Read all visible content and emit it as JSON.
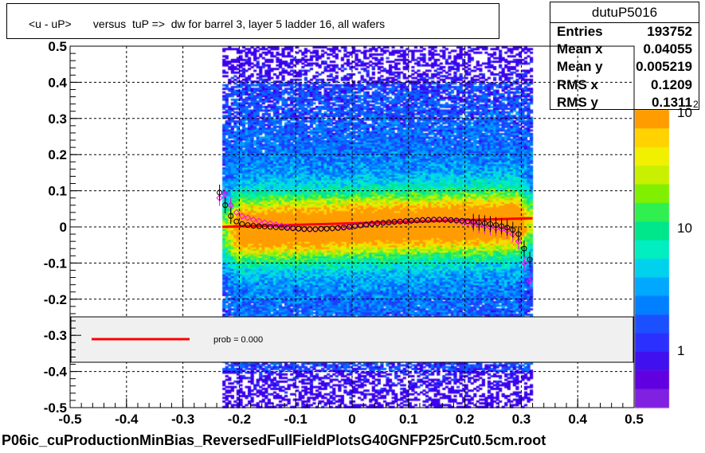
{
  "title": "<u - uP>       versus  tuP =>  dw for barrel 3, layer 5 ladder 16, all wafers",
  "stats": {
    "name": "dutuP5016",
    "rows": [
      {
        "label": "Entries",
        "value": "193752"
      },
      {
        "label": "Mean x",
        "value": "0.04055"
      },
      {
        "label": "Mean y",
        "value": "0.005219"
      },
      {
        "label": "RMS x",
        "value": "0.1209"
      },
      {
        "label": "RMS y",
        "value": "0.1311"
      }
    ]
  },
  "legend": {
    "text": "prob = 0.000",
    "line_color": "#ff0000"
  },
  "footer": "P06ic_cuProductionMinBias_ReversedFullFieldPlotsG40GNFP25rCut0.5cm.root",
  "chart_data": {
    "type": "heatmap",
    "title": "<u - uP>       versus  tuP =>  dw for barrel 3, layer 5 ladder 16, all wafers",
    "xlim": [
      -0.5,
      0.5
    ],
    "ylim": [
      -0.5,
      0.5
    ],
    "x_ticks": [
      "-0.5",
      "-0.4",
      "-0.3",
      "-0.2",
      "-0.1",
      "0",
      "0.1",
      "0.2",
      "0.3",
      "0.4",
      "0.5"
    ],
    "y_ticks": [
      "-0.5",
      "-0.4",
      "-0.3",
      "-0.2",
      "-0.1",
      "0",
      "0.1",
      "0.2",
      "0.3",
      "0.4",
      "0.5"
    ],
    "grid": true,
    "color_scale": {
      "type": "log",
      "tick_labels": [
        "1",
        "10",
        "10"
      ],
      "superscript": "2"
    },
    "occupied_x_range": [
      -0.23,
      0.32
    ],
    "fit_line": {
      "x": [
        -0.23,
        0.32
      ],
      "y": [
        0.0,
        0.024
      ],
      "color": "#ff0000"
    },
    "profile_black": {
      "x": [
        -0.235,
        -0.225,
        -0.215,
        -0.205,
        -0.195,
        -0.185,
        -0.175,
        -0.165,
        -0.155,
        -0.145,
        -0.135,
        -0.125,
        -0.115,
        -0.105,
        -0.095,
        -0.085,
        -0.075,
        -0.065,
        -0.055,
        -0.045,
        -0.035,
        -0.025,
        -0.015,
        -0.005,
        0.005,
        0.015,
        0.025,
        0.035,
        0.045,
        0.055,
        0.065,
        0.075,
        0.085,
        0.095,
        0.105,
        0.115,
        0.125,
        0.135,
        0.145,
        0.155,
        0.165,
        0.175,
        0.185,
        0.195,
        0.205,
        0.215,
        0.225,
        0.235,
        0.245,
        0.255,
        0.265,
        0.275,
        0.285,
        0.295,
        0.305,
        0.315
      ],
      "y": [
        0.095,
        0.06,
        0.03,
        0.015,
        0.008,
        0.005,
        0.003,
        0.002,
        0.001,
        0.0,
        -0.001,
        -0.002,
        -0.003,
        -0.004,
        -0.005,
        -0.006,
        -0.006,
        -0.006,
        -0.005,
        -0.005,
        -0.004,
        -0.003,
        -0.002,
        0.0,
        0.002,
        0.004,
        0.006,
        0.008,
        0.01,
        0.011,
        0.012,
        0.014,
        0.015,
        0.016,
        0.017,
        0.018,
        0.019,
        0.019,
        0.02,
        0.02,
        0.02,
        0.019,
        0.018,
        0.017,
        0.016,
        0.014,
        0.012,
        0.01,
        0.008,
        0.005,
        0.002,
        -0.002,
        -0.008,
        -0.02,
        -0.06,
        -0.09
      ]
    },
    "profile_magenta": {
      "x": [
        -0.235,
        -0.225,
        -0.215,
        -0.205,
        -0.195,
        -0.185,
        -0.175,
        -0.165,
        -0.155,
        -0.145,
        -0.135,
        -0.125,
        -0.115,
        -0.105,
        -0.095,
        -0.085,
        -0.075,
        -0.065,
        -0.055,
        -0.045,
        -0.035,
        -0.025,
        -0.015,
        -0.005,
        0.005,
        0.015,
        0.025,
        0.035,
        0.045,
        0.055,
        0.065,
        0.075,
        0.085,
        0.095,
        0.105,
        0.115,
        0.125,
        0.135,
        0.145,
        0.155,
        0.165,
        0.175,
        0.185,
        0.195,
        0.205,
        0.215,
        0.225,
        0.235,
        0.245,
        0.255,
        0.265,
        0.275,
        0.285,
        0.295,
        0.305,
        0.315
      ],
      "y": [
        0.08,
        0.09,
        0.06,
        0.04,
        0.03,
        0.025,
        0.02,
        0.016,
        0.012,
        0.009,
        0.006,
        0.003,
        0.0,
        -0.002,
        -0.004,
        -0.006,
        -0.007,
        -0.007,
        -0.006,
        -0.005,
        -0.004,
        -0.002,
        0.0,
        0.002,
        0.004,
        0.006,
        0.008,
        0.01,
        0.011,
        0.012,
        0.013,
        0.014,
        0.015,
        0.016,
        0.017,
        0.018,
        0.019,
        0.02,
        0.02,
        0.02,
        0.019,
        0.018,
        0.016,
        0.014,
        0.011,
        0.008,
        0.005,
        0.002,
        -0.001,
        -0.003,
        -0.006,
        -0.01,
        -0.02,
        -0.04,
        -0.1,
        -0.15
      ]
    }
  }
}
